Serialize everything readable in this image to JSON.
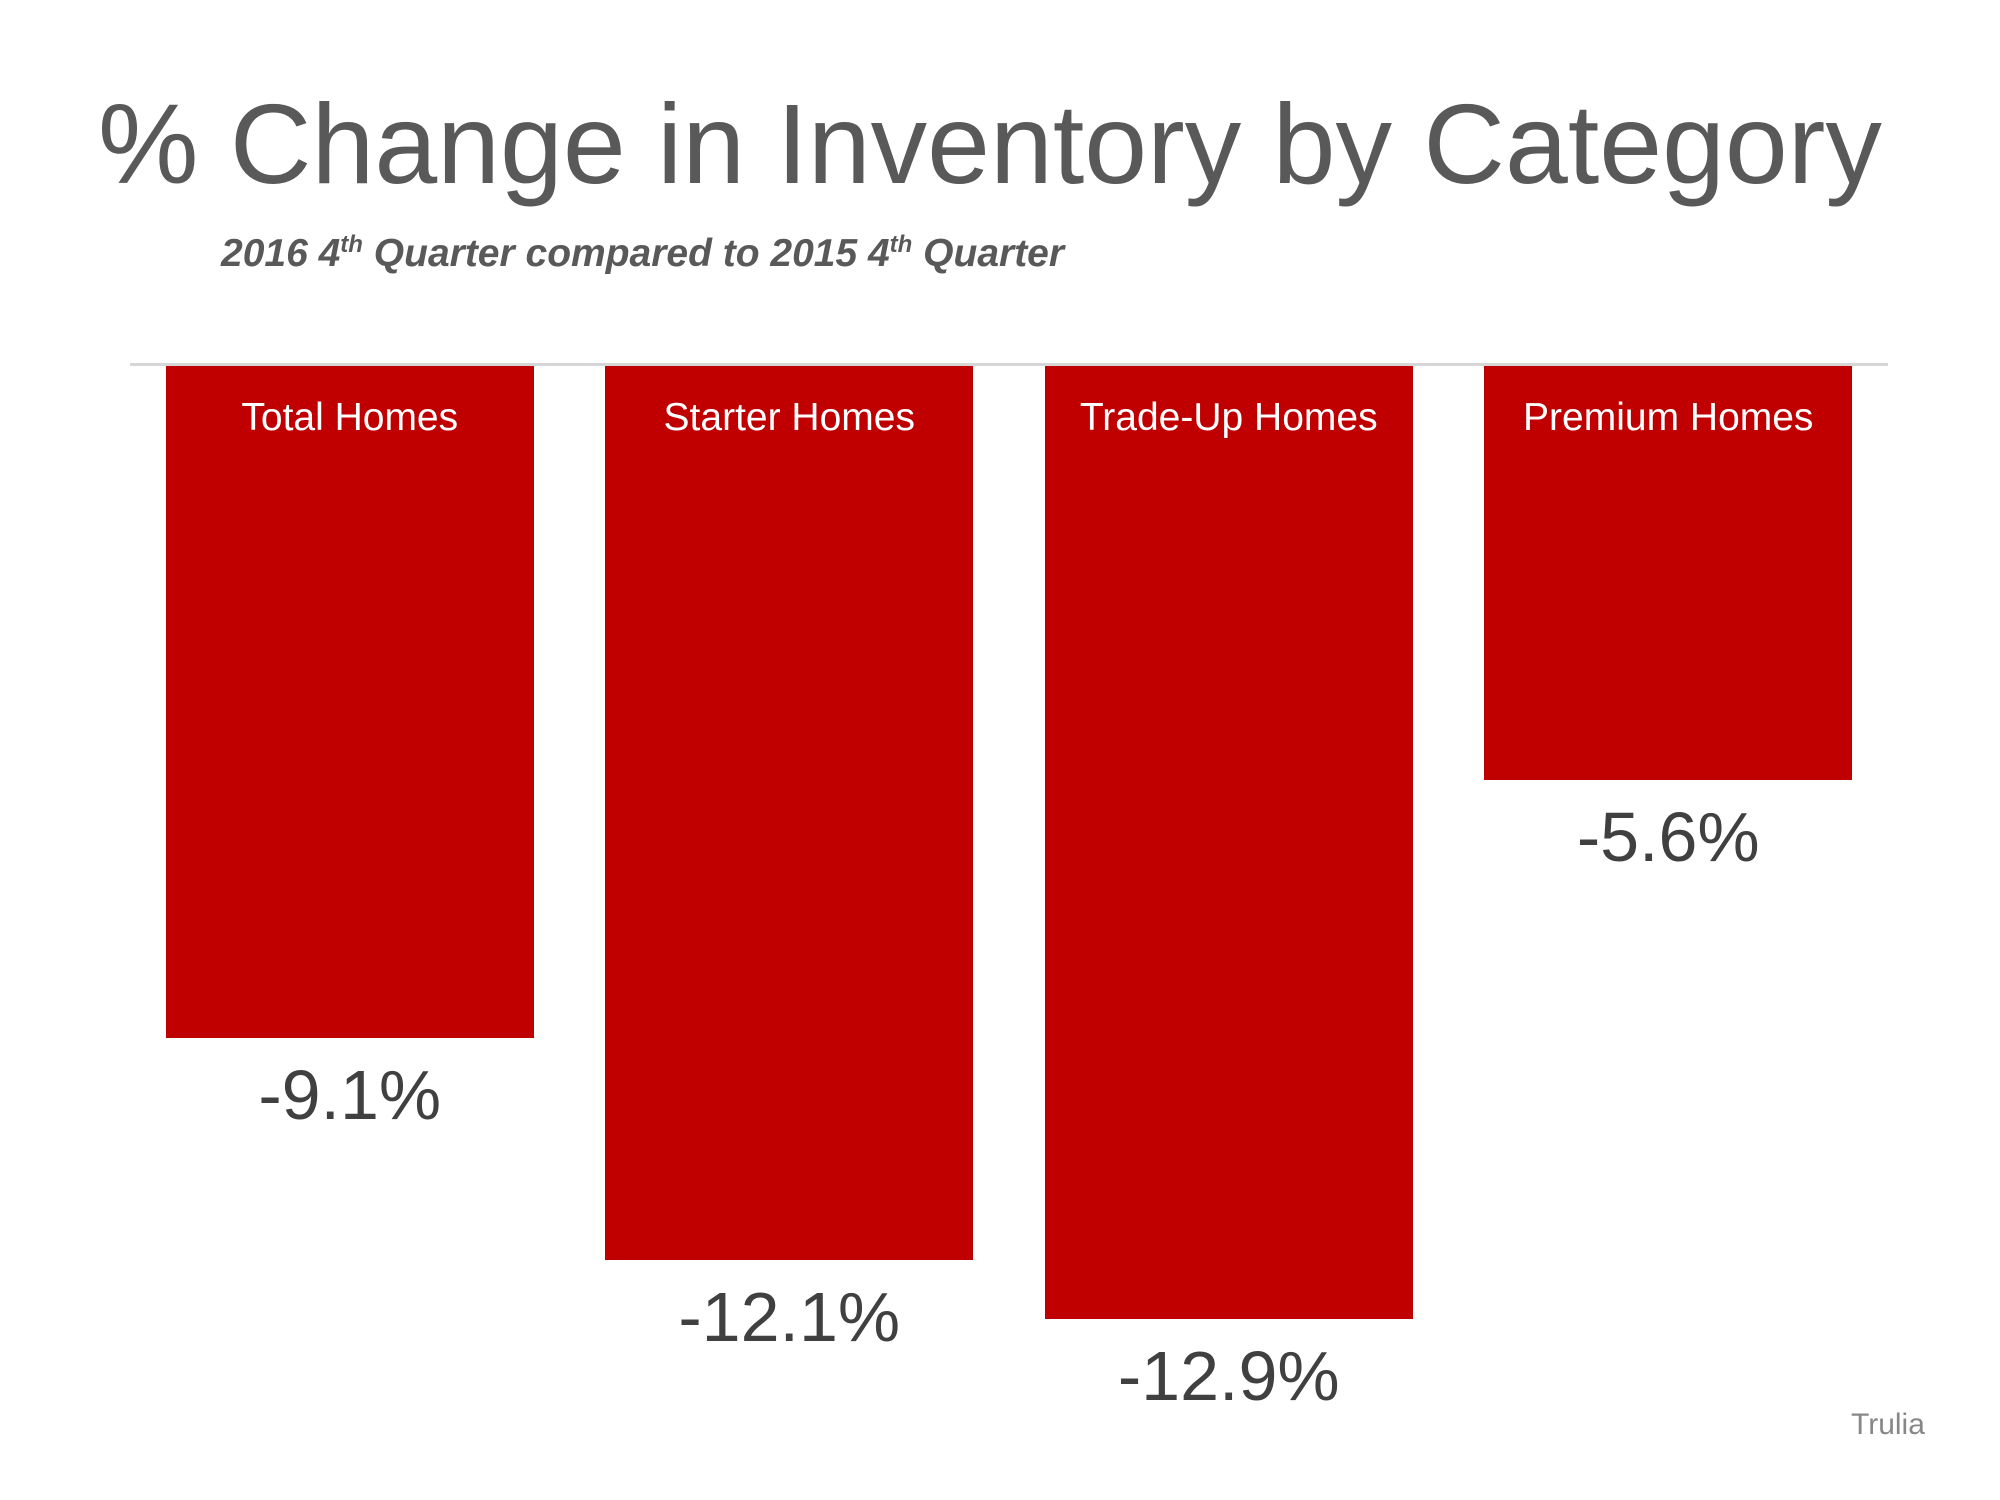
{
  "header": {
    "title": "% Change in Inventory by Category",
    "subtitle_parts": {
      "p1": "2016 4",
      "sup1": "th",
      "p2": " Quarter compared to 2015 4",
      "sup2": "th",
      "p3": " Quarter"
    }
  },
  "attribution": "Trulia",
  "colors": {
    "bar": "#c00000",
    "title_text": "#595959",
    "bar_label_text": "#ffffff",
    "value_label_text": "#404040",
    "baseline": "#d6d6d6",
    "attribution_text": "#878787"
  },
  "chart_data": {
    "type": "bar",
    "title": "% Change in Inventory by Category",
    "subtitle": "2016 4th Quarter compared to 2015 4th Quarter",
    "categories": [
      "Total Homes",
      "Starter Homes",
      "Trade-Up Homes",
      "Premium Homes"
    ],
    "values": [
      -9.1,
      -12.1,
      -12.9,
      -5.6
    ],
    "value_labels": [
      "-9.1%",
      "-12.1%",
      "-12.9%",
      "-5.6%"
    ],
    "ylabel": "",
    "xlabel": "",
    "ylim": [
      -13.5,
      0
    ],
    "grid": false,
    "legend": false,
    "bar_color": "#c00000",
    "orientation": "vertical-downward",
    "category_label_position": "inside-top",
    "value_label_position": "below-bar",
    "source": "Trulia"
  }
}
